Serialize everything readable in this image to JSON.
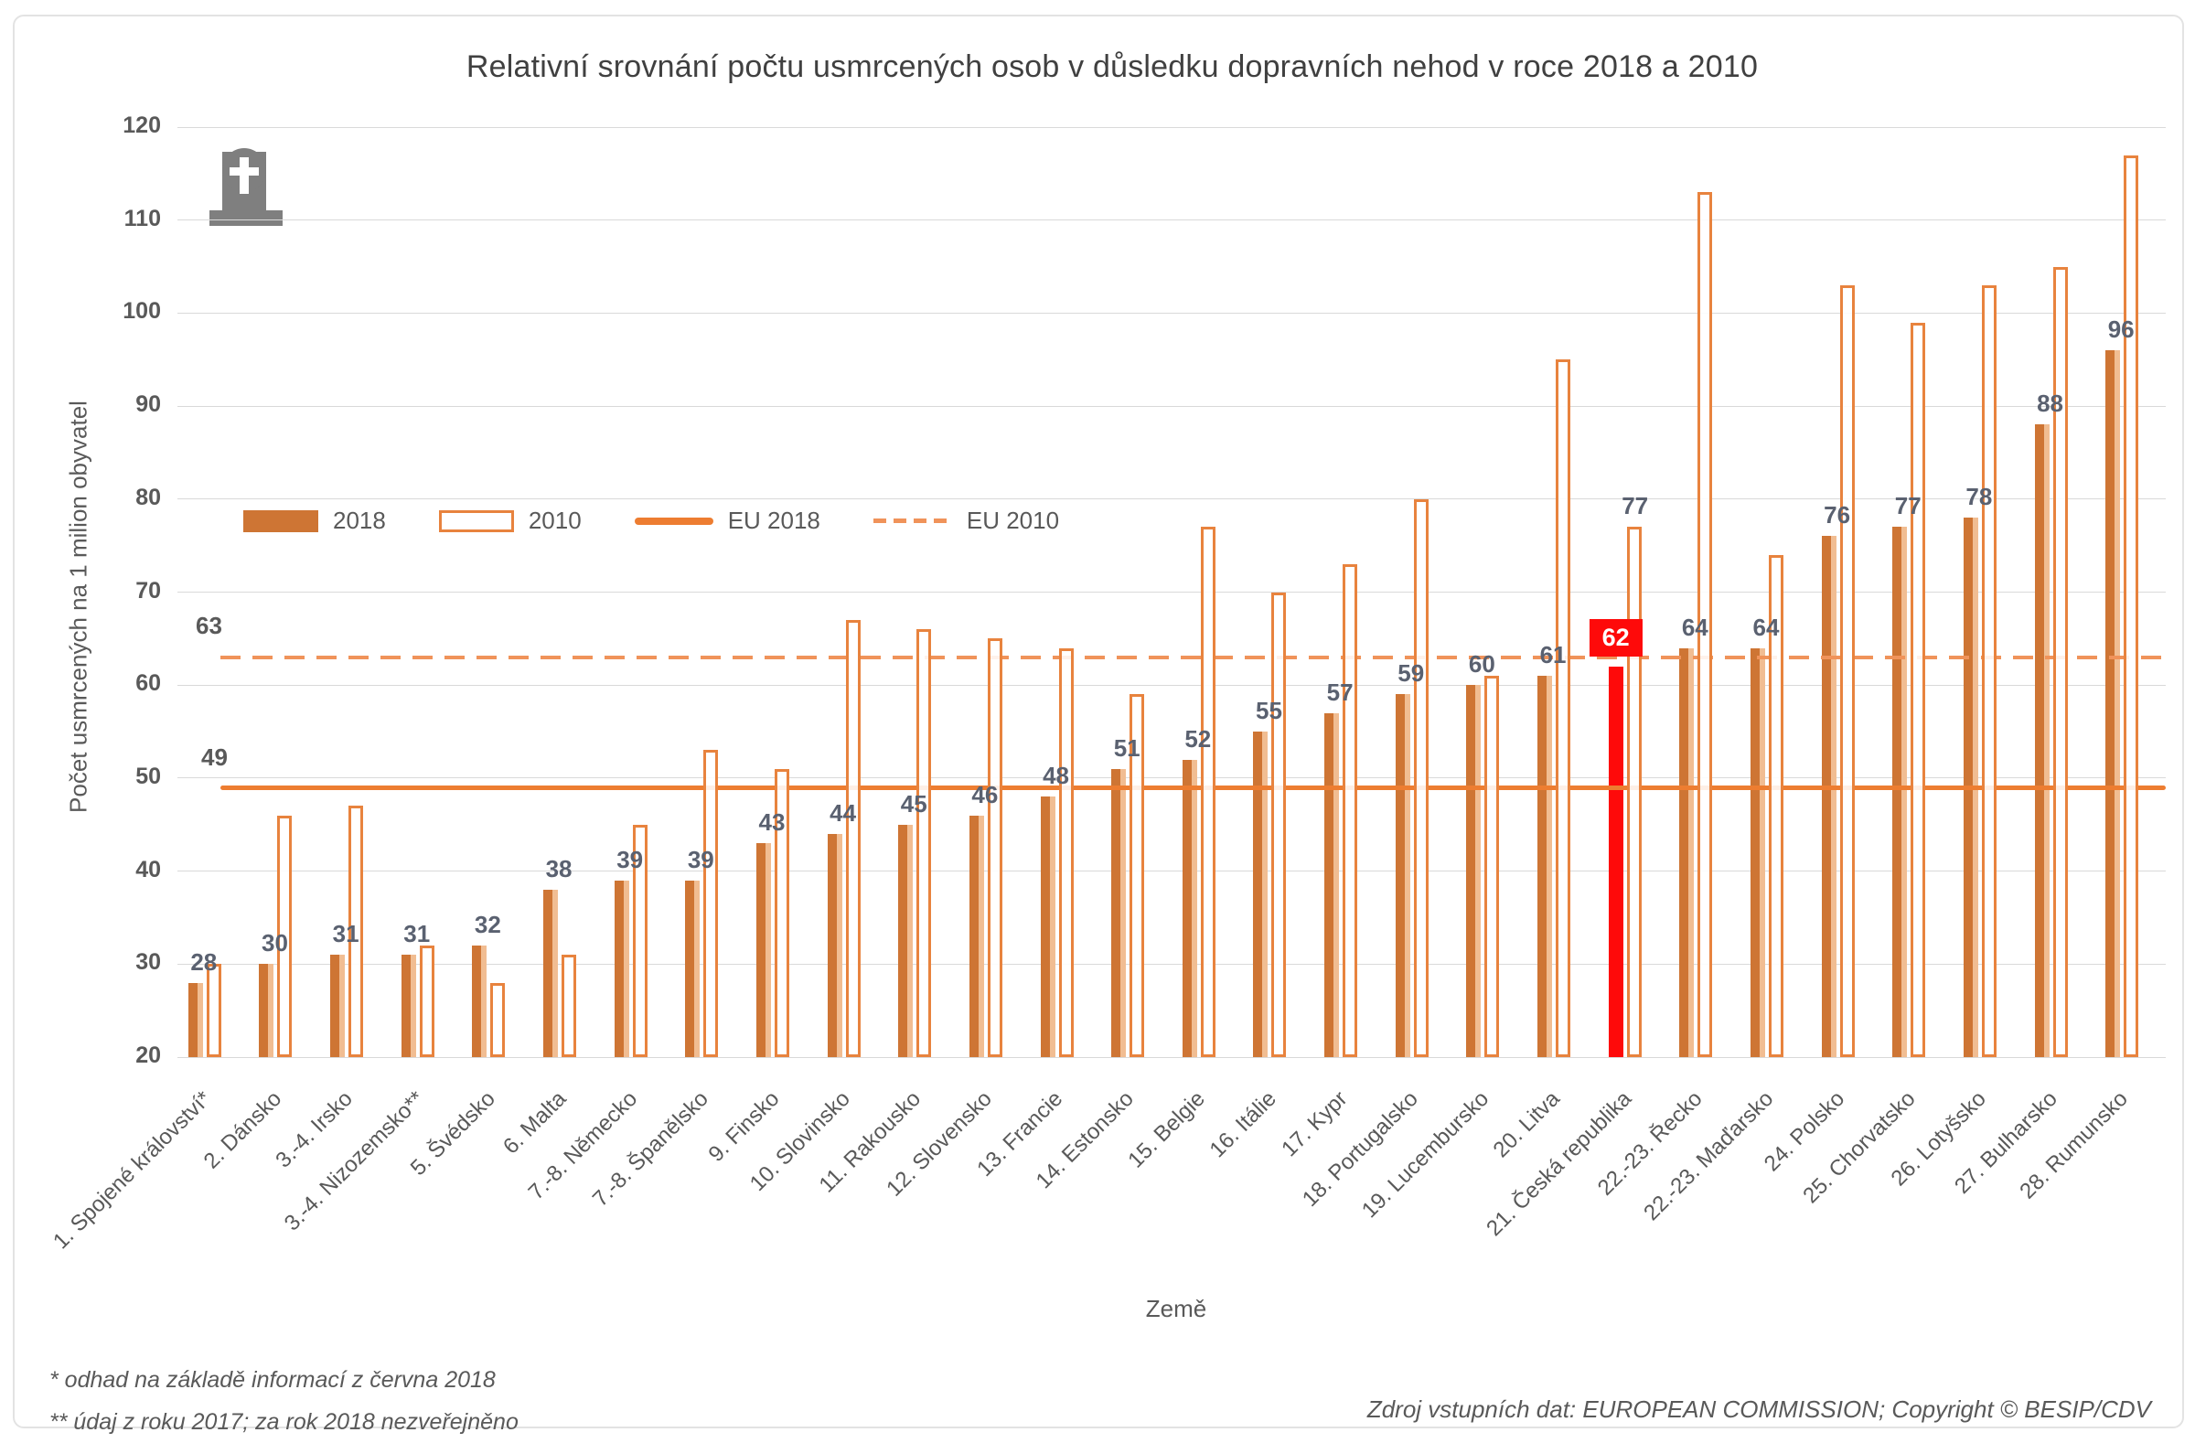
{
  "title": "Relativní srovnání počtu usmrcených osob v důsledku dopravních nehod v roce 2018 a 2010",
  "colors": {
    "bar_2018_fill": "#ce7534",
    "bar_2018_pale_edge": "#f1bd92",
    "bar_2010_border": "#e8833e",
    "eu_2018_line": "#ed7d31",
    "eu_2010_line": "#f0935a",
    "highlight_red": "#fe0a0a",
    "grid": "#d9d9d9",
    "label_gray": "#595959",
    "value_label": "#5a6170",
    "tombstone_gray": "#7f7f7f"
  },
  "icons": {
    "tombstone": "tombstone-with-cross"
  },
  "legend": {
    "item_2018": "2018",
    "item_2010": "2010",
    "item_eu2018": "EU 2018",
    "item_eu2010": "EU 2010"
  },
  "footnotes": {
    "line1": "* odhad na základě informací z června 2018",
    "line2": "** údaj z roku 2017; za rok 2018 nezveřejněno"
  },
  "source": "Zdroj vstupních dat: EUROPEAN COMMISSION;  Copyright © BESIP/CDV",
  "chart_data": {
    "type": "bar",
    "title": "Relativní srovnání počtu usmrcených osob v důsledku dopravních nehod v roce 2018 a 2010",
    "xlabel": "Země",
    "ylabel": "Počet usmrcených na 1 milion obyvatel",
    "ylim": [
      20,
      120
    ],
    "yticks": [
      20,
      30,
      40,
      50,
      60,
      70,
      80,
      90,
      100,
      110,
      120
    ],
    "grid": true,
    "legend_position": "inside-top-left",
    "categories": [
      "1. Spojené království*",
      "2. Dánsko",
      "3.-4. Irsko",
      "3.-4. Nizozemsko**",
      "5. Švédsko",
      "6. Malta",
      "7.-8. Německo",
      "7.-8. Španělsko",
      "9. Finsko",
      "10. Slovinsko",
      "11. Rakousko",
      "12. Slovensko",
      "13. Francie",
      "14. Estonsko",
      "15. Belgie",
      "16. Itálie",
      "17. Kypr",
      "18. Portugalsko",
      "19. Lucembursko",
      "20. Litva",
      "21. Česká republika",
      "22.-23. Řecko",
      "22.-23. Maďarsko",
      "24. Polsko",
      "25. Chorvatsko",
      "26. Lotyšsko",
      "27. Bulharsko",
      "28. Rumunsko"
    ],
    "series": [
      {
        "name": "2018",
        "values": [
          28,
          30,
          31,
          31,
          32,
          38,
          39,
          39,
          43,
          44,
          45,
          46,
          48,
          51,
          52,
          55,
          57,
          59,
          60,
          61,
          62,
          64,
          64,
          76,
          77,
          78,
          88,
          96
        ],
        "labels_shown": true
      },
      {
        "name": "2010",
        "values": [
          30,
          46,
          47,
          32,
          28,
          31,
          45,
          53,
          51,
          67,
          66,
          65,
          64,
          59,
          77,
          70,
          73,
          80,
          61,
          95,
          77,
          113,
          74,
          103,
          99,
          103,
          105,
          117
        ],
        "labels_shown": false
      }
    ],
    "highlight": {
      "index": 20,
      "category": "21. Česká republika",
      "value_2018": 62,
      "value_2010_label": "77",
      "bar_color": "#fe0a0a"
    },
    "reference_lines": [
      {
        "name": "EU 2018",
        "value": 49,
        "label": "49",
        "style": "solid"
      },
      {
        "name": "EU 2010",
        "value": 63,
        "label": "63",
        "style": "dashed"
      }
    ]
  }
}
